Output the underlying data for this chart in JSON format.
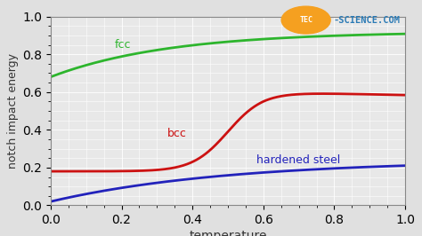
{
  "title": "",
  "xlabel": "temperature",
  "ylabel": "notch impact energy",
  "background_color": "#e0e0e0",
  "plot_bg_color": "#e8e8e8",
  "grid_color": "#ffffff",
  "fcc_color": "#2db52d",
  "bcc_color": "#cc1111",
  "hardened_color": "#2222bb",
  "fcc_label": "fcc",
  "bcc_label": "bcc",
  "hardened_label": "hardened steel",
  "xlabel_fontsize": 10,
  "ylabel_fontsize": 9,
  "label_fontsize": 9,
  "logo_text": "TEC-SCIENCE.COM",
  "logo_tec": "TEC",
  "logo_circle_color": "#f5a020",
  "logo_text_color": "#2a7ab5",
  "logo_tec_color": "#ffffff"
}
